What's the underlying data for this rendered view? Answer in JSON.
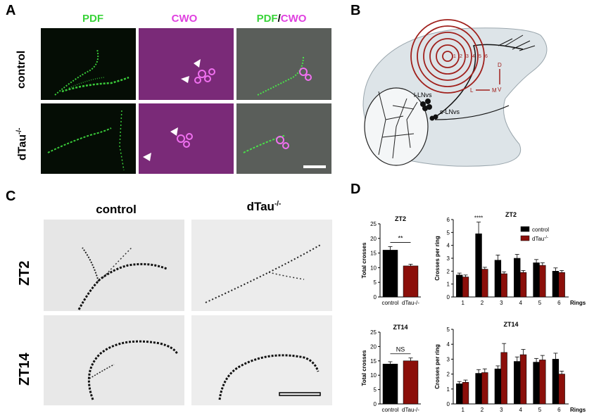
{
  "panel_labels": {
    "a": "A",
    "b": "B",
    "c": "C",
    "d": "D"
  },
  "panelA": {
    "col_titles": [
      "PDF",
      "CWO",
      "PDF",
      "/",
      "CWO"
    ],
    "row_labels": {
      "control": "control",
      "mutant": "dTau",
      "mutant_sup": "-/-"
    }
  },
  "panelB": {
    "ring_numbers": [
      "1",
      "2",
      "3",
      "4",
      "5",
      "6"
    ],
    "labels": {
      "l_lnvs": "l-LNvs",
      "s_lnvs": "s-LNvs",
      "d": "D",
      "v": "V",
      "l": "L",
      "m": "M"
    }
  },
  "panelC": {
    "col_titles": {
      "control": "control",
      "mutant": "dTau",
      "mutant_sup": "-/-"
    },
    "row_labels": [
      "ZT2",
      "ZT14"
    ]
  },
  "colors": {
    "control": "#000000",
    "mutant": "#8b0f0a",
    "ring": "#a0201c",
    "green": "#39d339",
    "magenta": "#e040e0"
  },
  "chart_data": [
    {
      "type": "bar",
      "title": "ZT2",
      "ylabel": "Total crosses",
      "categories": [
        "control",
        "dTau-/-"
      ],
      "values": [
        16,
        10.6
      ],
      "errors": [
        1.2,
        0.6
      ],
      "ylim": [
        0,
        25
      ],
      "yticks": [
        "0",
        "5",
        "10",
        "15",
        "20",
        "25"
      ],
      "annotation": "**",
      "legend_sup": "-/-"
    },
    {
      "type": "bar",
      "title": "ZT2",
      "ylabel": "Crosses per ring",
      "xlabel": "Rings",
      "categories": [
        "1",
        "2",
        "3",
        "4",
        "5",
        "6"
      ],
      "series": [
        {
          "name": "control",
          "values": [
            1.7,
            4.9,
            2.85,
            3.0,
            2.65,
            2.0
          ],
          "errors": [
            0.15,
            0.9,
            0.4,
            0.3,
            0.25,
            0.25
          ]
        },
        {
          "name": "dTau",
          "values": [
            1.55,
            2.15,
            1.8,
            1.9,
            2.45,
            1.9
          ],
          "errors": [
            0.15,
            0.15,
            0.15,
            0.15,
            0.2,
            0.15
          ]
        }
      ],
      "ylim": [
        0,
        6
      ],
      "yticks": [
        "0",
        "1",
        "2",
        "3",
        "4",
        "5",
        "6"
      ],
      "annotation": "****",
      "legend": [
        "control",
        "dTau"
      ],
      "legend_sup": "-/-"
    },
    {
      "type": "bar",
      "title": "ZT14",
      "ylabel": "Total crosses",
      "categories": [
        "control",
        "dTau-/-"
      ],
      "values": [
        13.9,
        15.0
      ],
      "errors": [
        0.8,
        1.0
      ],
      "ylim": [
        0,
        25
      ],
      "yticks": [
        "0",
        "5",
        "10",
        "15",
        "20",
        "25"
      ],
      "annotation": "NS",
      "legend_sup": "-/-"
    },
    {
      "type": "bar",
      "title": "ZT14",
      "ylabel": "Crosses per ring",
      "xlabel": "Rings",
      "categories": [
        "1",
        "2",
        "3",
        "4",
        "5",
        "6"
      ],
      "series": [
        {
          "name": "control",
          "values": [
            1.35,
            2.05,
            2.35,
            2.85,
            2.8,
            3.0
          ],
          "errors": [
            0.15,
            0.25,
            0.2,
            0.3,
            0.25,
            0.4
          ]
        },
        {
          "name": "dTau",
          "values": [
            1.45,
            2.1,
            3.45,
            3.3,
            2.95,
            2.0
          ],
          "errors": [
            0.15,
            0.25,
            0.6,
            0.35,
            0.3,
            0.2
          ]
        }
      ],
      "ylim": [
        0,
        5
      ],
      "yticks": [
        "0",
        "1",
        "2",
        "3",
        "4",
        "5"
      ]
    }
  ]
}
